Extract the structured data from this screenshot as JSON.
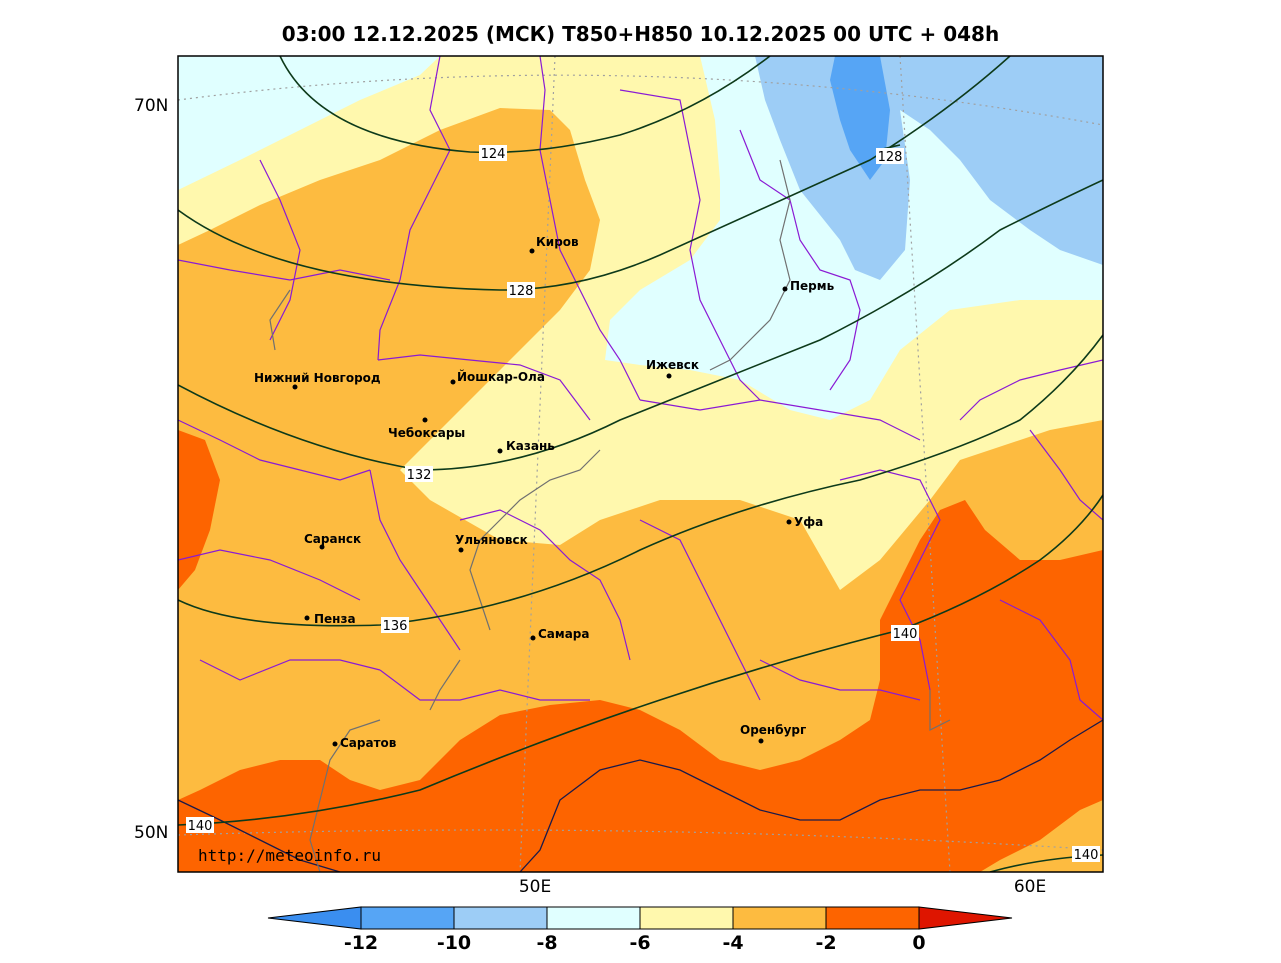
{
  "title": "03:00 12.12.2025 (МСК) T850+H850 10.12.2025 00 UTC + 048h",
  "source": "http://meteoinfo.ru",
  "lat_labels": [
    {
      "id": "lat-70n",
      "text": "70N"
    },
    {
      "id": "lat-50n",
      "text": "50N"
    }
  ],
  "lon_labels": [
    {
      "id": "lon-50e",
      "text": "50E"
    },
    {
      "id": "lon-60e",
      "text": "60E"
    }
  ],
  "cities": [
    {
      "id": "kirov",
      "name": "Киров"
    },
    {
      "id": "perm",
      "name": "Пермь"
    },
    {
      "id": "nizhny",
      "name": "Нижний Новгород"
    },
    {
      "id": "yoshkar",
      "name": "Йошкар-Ола"
    },
    {
      "id": "izhevsk",
      "name": "Ижевск"
    },
    {
      "id": "cheboksary",
      "name": "Чебоксары"
    },
    {
      "id": "kazan",
      "name": "Казань"
    },
    {
      "id": "ufa",
      "name": "Уфа"
    },
    {
      "id": "saransk",
      "name": "Саранск"
    },
    {
      "id": "ulyanovsk",
      "name": "Ульяновск"
    },
    {
      "id": "penza",
      "name": "Пенза"
    },
    {
      "id": "samara",
      "name": "Самара"
    },
    {
      "id": "orenburg",
      "name": "Оренбург"
    },
    {
      "id": "saratov",
      "name": "Саратов"
    }
  ],
  "isohypse_labels": [
    {
      "id": "iso-124",
      "text": "124"
    },
    {
      "id": "iso-128a",
      "text": "128"
    },
    {
      "id": "iso-128b",
      "text": "128"
    },
    {
      "id": "iso-132",
      "text": "132"
    },
    {
      "id": "iso-136",
      "text": "136"
    },
    {
      "id": "iso-140a",
      "text": "140"
    },
    {
      "id": "iso-140b",
      "text": "140"
    },
    {
      "id": "iso-140c",
      "text": "140"
    }
  ],
  "colorbar": {
    "ticks": [
      "-12",
      "-10",
      "-8",
      "-6",
      "-4",
      "-2",
      "0"
    ],
    "colors": [
      "#3a8ef0",
      "#56a5f5",
      "#9dcdf6",
      "#e0ffff",
      "#fff8ad",
      "#fdbb40",
      "#fd6400",
      "#de1500"
    ]
  },
  "fill_colors": {
    "lt_minus10": "#56a5f5",
    "minus10_to_minus8": "#9dcdf6",
    "minus8_to_minus6": "#e0ffff",
    "minus6_to_minus4": "#fff8ad",
    "minus4_to_minus2": "#fdbb40",
    "minus2_to_0": "#fd6400"
  }
}
